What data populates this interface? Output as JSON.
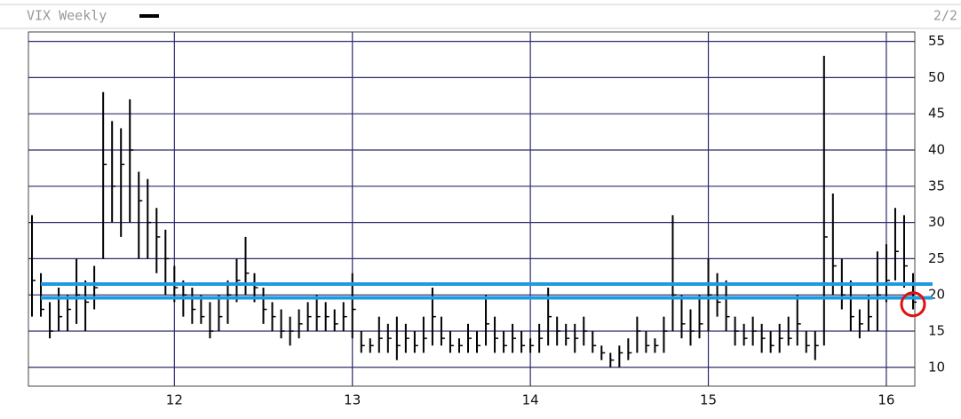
{
  "chart_data": {
    "type": "ohlc",
    "title": "VIX Weekly",
    "page_label": "2/2",
    "color": "#000000",
    "grid": true,
    "grid_color": "#2b2b6b",
    "xlim": [
      2011.18,
      2016.16
    ],
    "ylim": [
      7.4,
      56.3
    ],
    "xticks": [
      {
        "value": 2012,
        "label": "12"
      },
      {
        "value": 2013,
        "label": "13"
      },
      {
        "value": 2014,
        "label": "14"
      },
      {
        "value": 2015,
        "label": "15"
      },
      {
        "value": 2016,
        "label": "16"
      }
    ],
    "yticks": [
      10,
      15,
      20,
      25,
      30,
      35,
      40,
      45,
      50,
      55
    ],
    "x": [
      2011.2,
      2011.25,
      2011.3,
      2011.35,
      2011.4,
      2011.45,
      2011.5,
      2011.55,
      2011.6,
      2011.65,
      2011.7,
      2011.75,
      2011.8,
      2011.85,
      2011.9,
      2011.95,
      2012.0,
      2012.05,
      2012.1,
      2012.15,
      2012.2,
      2012.25,
      2012.3,
      2012.35,
      2012.4,
      2012.45,
      2012.5,
      2012.55,
      2012.6,
      2012.65,
      2012.7,
      2012.75,
      2012.8,
      2012.85,
      2012.9,
      2012.95,
      2013.0,
      2013.05,
      2013.1,
      2013.15,
      2013.2,
      2013.25,
      2013.3,
      2013.35,
      2013.4,
      2013.45,
      2013.5,
      2013.55,
      2013.6,
      2013.65,
      2013.7,
      2013.75,
      2013.8,
      2013.85,
      2013.9,
      2013.95,
      2014.0,
      2014.05,
      2014.1,
      2014.15,
      2014.2,
      2014.25,
      2014.3,
      2014.35,
      2014.4,
      2014.45,
      2014.5,
      2014.55,
      2014.6,
      2014.65,
      2014.7,
      2014.75,
      2014.8,
      2014.85,
      2014.9,
      2014.95,
      2015.0,
      2015.05,
      2015.1,
      2015.15,
      2015.2,
      2015.25,
      2015.3,
      2015.35,
      2015.4,
      2015.45,
      2015.5,
      2015.55,
      2015.6,
      2015.65,
      2015.7,
      2015.75,
      2015.8,
      2015.85,
      2015.9,
      2015.95,
      2016.0,
      2016.05,
      2016.1,
      2016.15
    ],
    "high": [
      31,
      23,
      19,
      21,
      20,
      25,
      22,
      24,
      48,
      44,
      43,
      47,
      37,
      36,
      32,
      29,
      24,
      22,
      21,
      20,
      19,
      20,
      22,
      25,
      28,
      23,
      21,
      19,
      18,
      17,
      18,
      19,
      20,
      19,
      18,
      19,
      23,
      15,
      14,
      17,
      16,
      17,
      16,
      15,
      17,
      21,
      17,
      15,
      14,
      16,
      15,
      20,
      17,
      15,
      16,
      15,
      14,
      16,
      21,
      17,
      16,
      16,
      17,
      15,
      13,
      12,
      13,
      14,
      17,
      15,
      14,
      17,
      31,
      20,
      18,
      20,
      25,
      23,
      22,
      17,
      16,
      17,
      16,
      15,
      16,
      17,
      20,
      15,
      15,
      53,
      34,
      25,
      22,
      18,
      20,
      26,
      27,
      32,
      31,
      23
    ],
    "low": [
      17,
      17,
      14,
      15,
      15,
      16,
      15,
      18,
      25,
      30,
      28,
      30,
      25,
      25,
      23,
      20,
      19,
      17,
      16,
      16,
      14,
      15,
      16,
      19,
      20,
      19,
      16,
      15,
      14,
      13,
      14,
      15,
      15,
      15,
      15,
      15,
      14,
      12,
      12,
      12,
      12,
      11,
      12,
      12,
      12,
      13,
      13,
      12,
      12,
      12,
      12,
      13,
      12,
      12,
      12,
      12,
      12,
      12,
      13,
      13,
      13,
      12,
      13,
      12,
      11,
      10,
      10,
      11,
      12,
      12,
      12,
      12,
      15,
      14,
      13,
      14,
      15,
      17,
      15,
      13,
      13,
      13,
      12,
      12,
      12,
      13,
      13,
      12,
      11,
      13,
      20,
      18,
      15,
      14,
      15,
      15,
      19,
      22,
      21,
      18
    ],
    "close": [
      22,
      18,
      15,
      17,
      18,
      20,
      19,
      21,
      38,
      35,
      38,
      40,
      33,
      30,
      28,
      25,
      21,
      20,
      18,
      17,
      15,
      17,
      20,
      22,
      23,
      21,
      18,
      17,
      15,
      15,
      16,
      17,
      17,
      17,
      16,
      17,
      18,
      13,
      13,
      14,
      14,
      13,
      14,
      13,
      14,
      17,
      14,
      13,
      13,
      14,
      13,
      16,
      14,
      13,
      14,
      13,
      13,
      14,
      17,
      15,
      14,
      14,
      15,
      13,
      12,
      11,
      12,
      12,
      15,
      13,
      13,
      15,
      20,
      16,
      15,
      16,
      20,
      19,
      17,
      15,
      14,
      15,
      14,
      13,
      14,
      14,
      16,
      13,
      13,
      28,
      24,
      20,
      17,
      16,
      17,
      20,
      22,
      26,
      24,
      19
    ],
    "hlines": {
      "values": [
        21.5,
        19.6
      ],
      "color": "#1e9be0"
    },
    "circle": {
      "x": 2016.15,
      "y": 18.7,
      "color": "#e01010"
    }
  }
}
